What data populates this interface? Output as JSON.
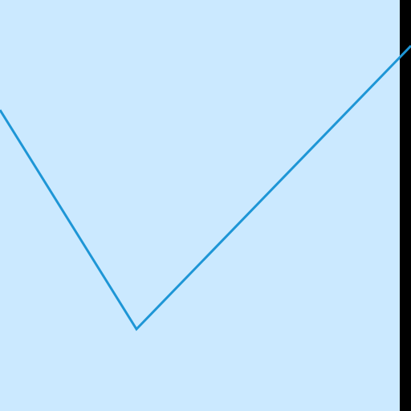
{
  "icon": {
    "name": "checkmark-icon",
    "background_color": "#cbe9ff",
    "stroke_color": "#1e96d6",
    "edge_color": "#000000"
  }
}
